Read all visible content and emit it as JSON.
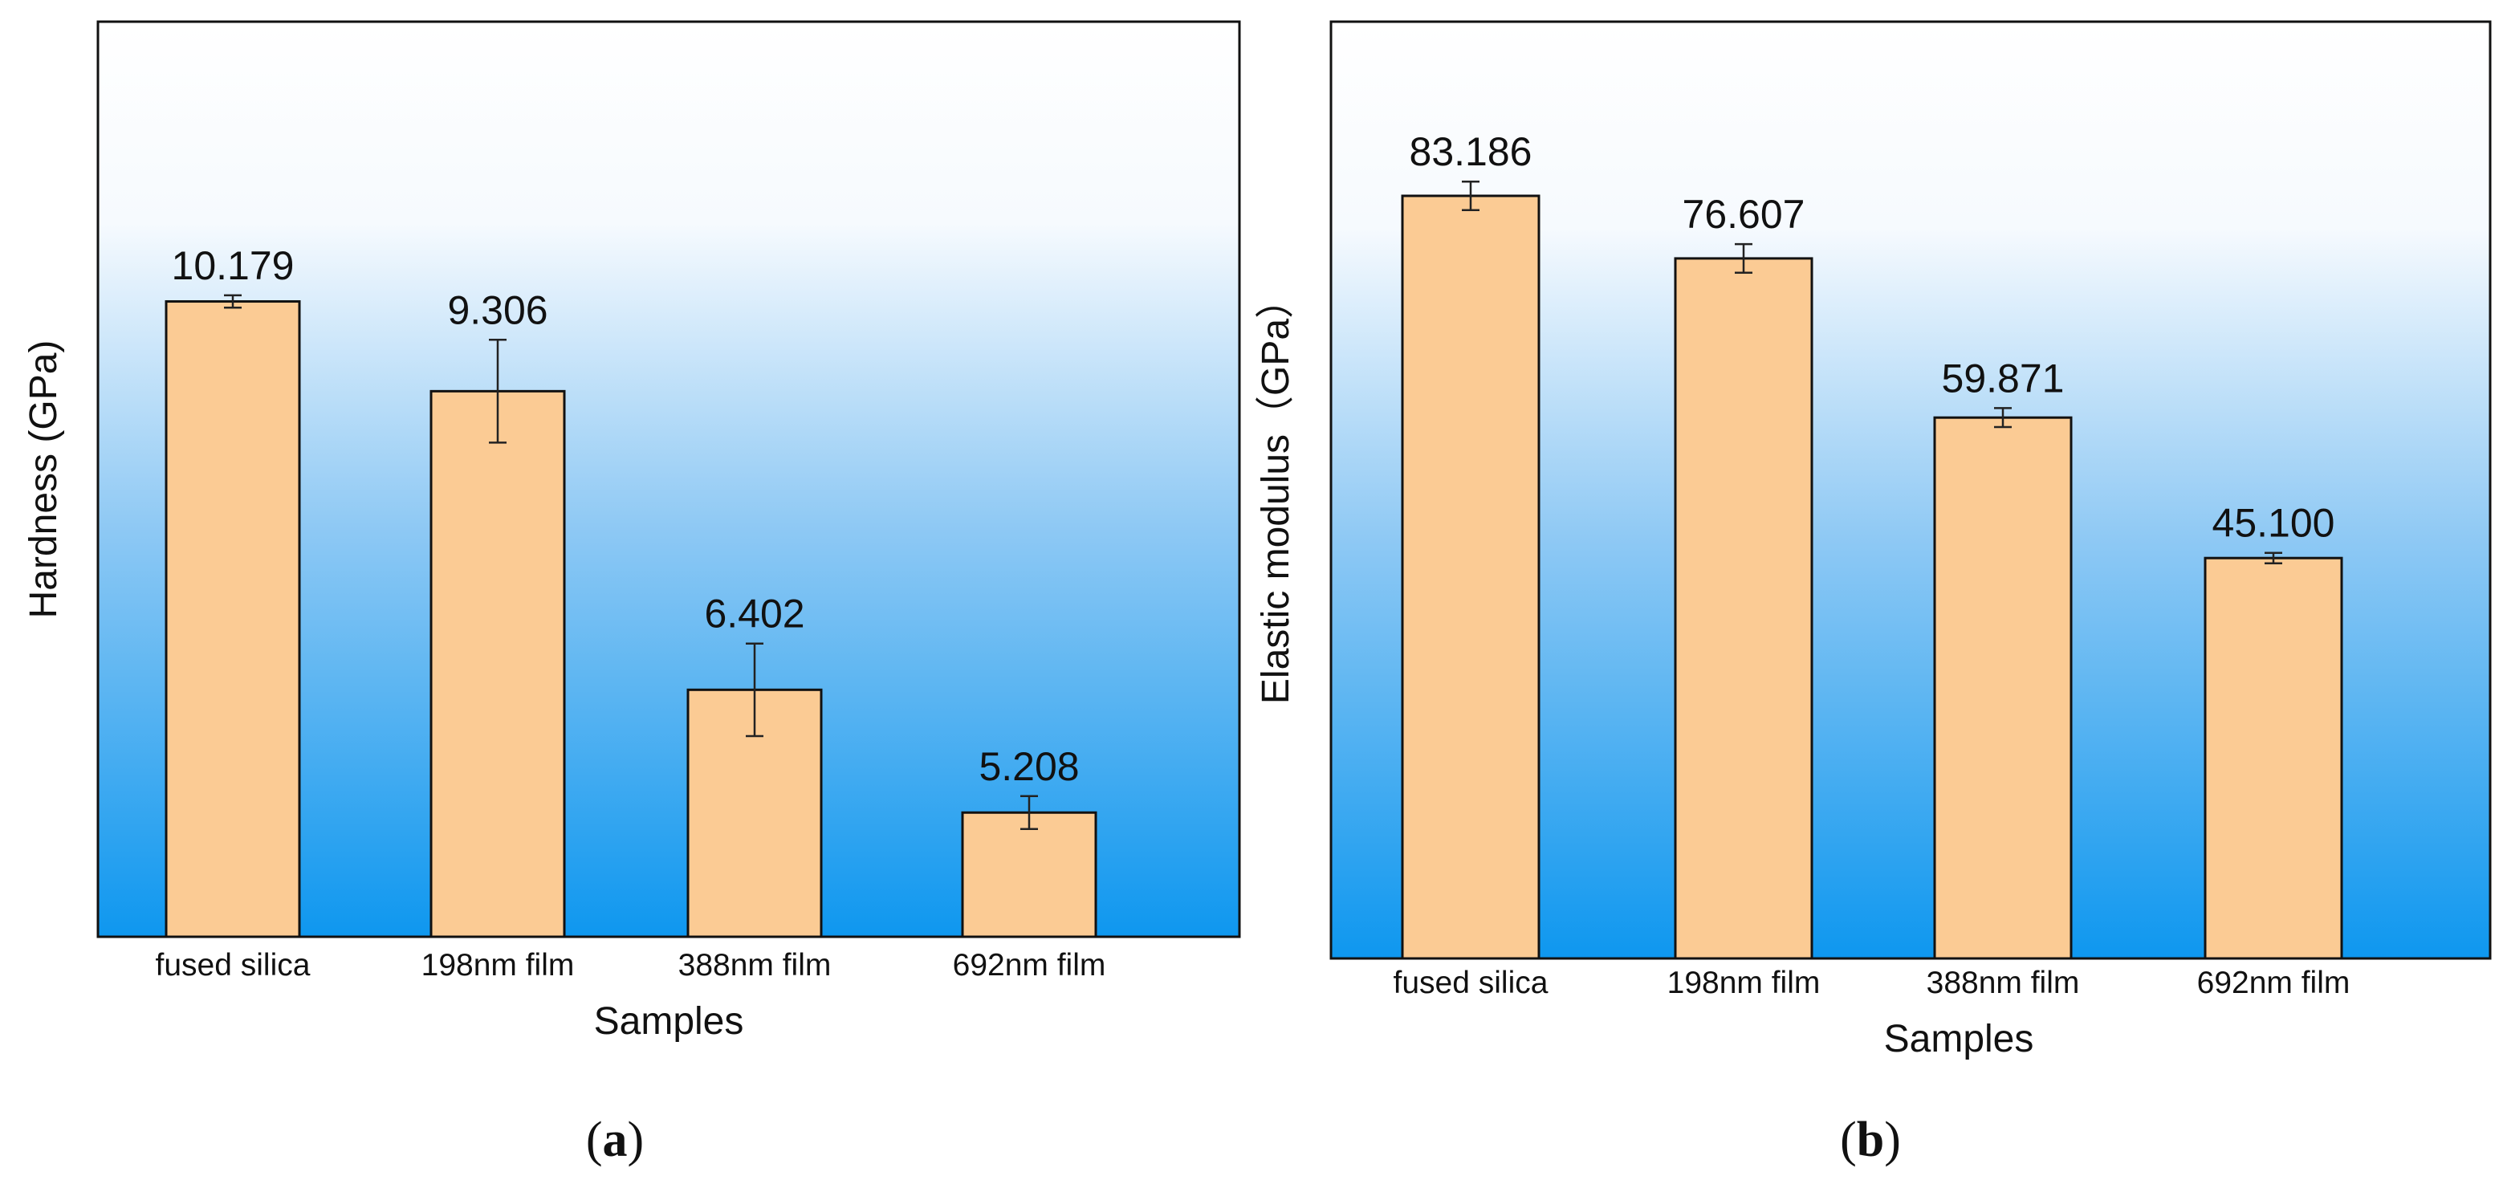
{
  "chart_data": [
    {
      "type": "bar",
      "panel_label": "(a)",
      "panel_letter": "a",
      "xlabel": "Samples",
      "ylabel": "Hardness (GPa)",
      "categories": [
        "fused silica",
        "198nm film",
        "388nm film",
        "692nm film"
      ],
      "values": [
        10.179,
        9.306,
        6.402,
        5.208
      ],
      "value_labels": [
        "10.179",
        "9.306",
        "6.402",
        "5.208"
      ],
      "error": [
        0.06,
        0.5,
        0.45,
        0.16
      ],
      "ylim": [
        4.0,
        12.9
      ],
      "y_ticks_visible": false,
      "colors": {
        "bar_fill": "#FBCB94",
        "bar_stroke": "#111111",
        "bg_top": "#FFFFFF",
        "bg_bottom": "#0E97EF"
      }
    },
    {
      "type": "bar",
      "panel_label": "(b)",
      "panel_letter": "b",
      "xlabel": "Samples",
      "ylabel": "Elastic modulus（GPa）",
      "categories": [
        "fused silica",
        "198nm film",
        "388nm film",
        "692nm film"
      ],
      "values": [
        83.186,
        76.607,
        59.871,
        45.1
      ],
      "value_labels": [
        "83.186",
        "76.607",
        "59.871",
        "45.100"
      ],
      "error": [
        1.5,
        1.5,
        1.0,
        0.55
      ],
      "ylim": [
        3.0,
        101.5
      ],
      "y_ticks_visible": false,
      "colors": {
        "bar_fill": "#FBCB94",
        "bar_stroke": "#111111",
        "bg_top": "#FFFFFF",
        "bg_bottom": "#0E97EF"
      }
    }
  ]
}
